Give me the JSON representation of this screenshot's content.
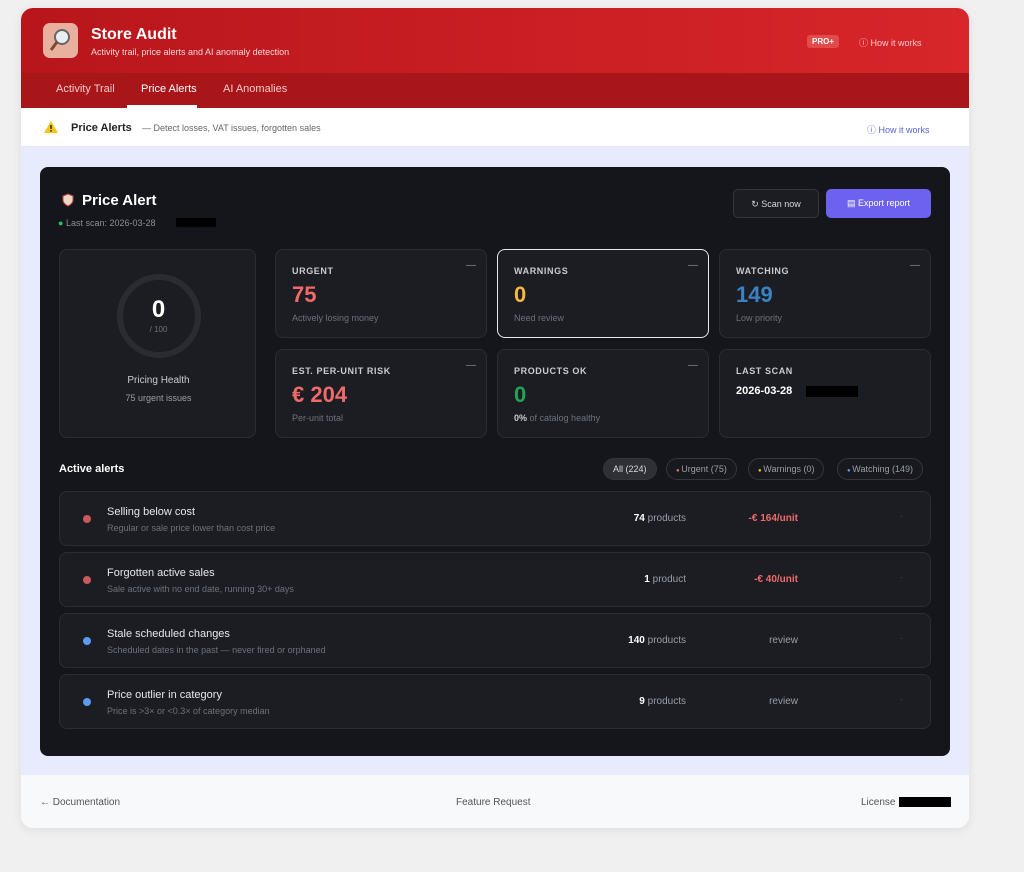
{
  "header": {
    "title": "Store Audit",
    "subtitle": "Activity trail, price alerts and AI anomaly detection",
    "badge": "PRO+",
    "help": "How it works"
  },
  "tabs": [
    "Activity Trail",
    "Price Alerts",
    "AI Anomalies"
  ],
  "section": {
    "title": "Price Alerts",
    "description": "— Detect losses, VAT issues, forgotten sales",
    "help": "How it works"
  },
  "panel": {
    "title": "Price Alert",
    "last_scan": "Last scan: 2026-03-28",
    "scan_button": "Scan now",
    "export_button": "Export report"
  },
  "health": {
    "score": "0",
    "max": "/ 100",
    "label": "Pricing Health",
    "summary": "75 urgent issues"
  },
  "cards": [
    {
      "label": "URGENT",
      "value": "75",
      "sub": "Actively losing money"
    },
    {
      "label": "WARNINGS",
      "value": "0",
      "sub": "Need review"
    },
    {
      "label": "WATCHING",
      "value": "149",
      "sub": "Low priority"
    },
    {
      "label": "EST. PER-UNIT RISK",
      "value": "€ 204",
      "sub": "Per-unit total"
    },
    {
      "label": "PRODUCTS OK",
      "value": "0",
      "sub_strong": "0%",
      "sub": "of catalog healthy"
    },
    {
      "label": "LAST SCAN",
      "date": "2026-03-28"
    }
  ],
  "alerts_title": "Active alerts",
  "filters": [
    "All (224)",
    "Urgent (75)",
    "Warnings (0)",
    "Watching (149)"
  ],
  "alerts": [
    {
      "name": "Selling below cost",
      "description": "Regular or sale price lower than cost price",
      "count": "74",
      "unit": "products",
      "impact": "-€ 164/unit"
    },
    {
      "name": "Forgotten active sales",
      "description": "Sale active with no end date, running 30+ days",
      "count": "1",
      "unit": "product",
      "impact": "-€ 40/unit"
    },
    {
      "name": "Stale scheduled changes",
      "description": "Scheduled dates in the past — never fired or orphaned",
      "count": "140",
      "unit": "products",
      "impact": "review"
    },
    {
      "name": "Price outlier in category",
      "description": "Price is >3× or <0.3× of category median",
      "count": "9",
      "unit": "products",
      "impact": "review"
    }
  ],
  "footer": {
    "documentation": "← Documentation",
    "feature_request": "Feature Request",
    "license": "License"
  }
}
